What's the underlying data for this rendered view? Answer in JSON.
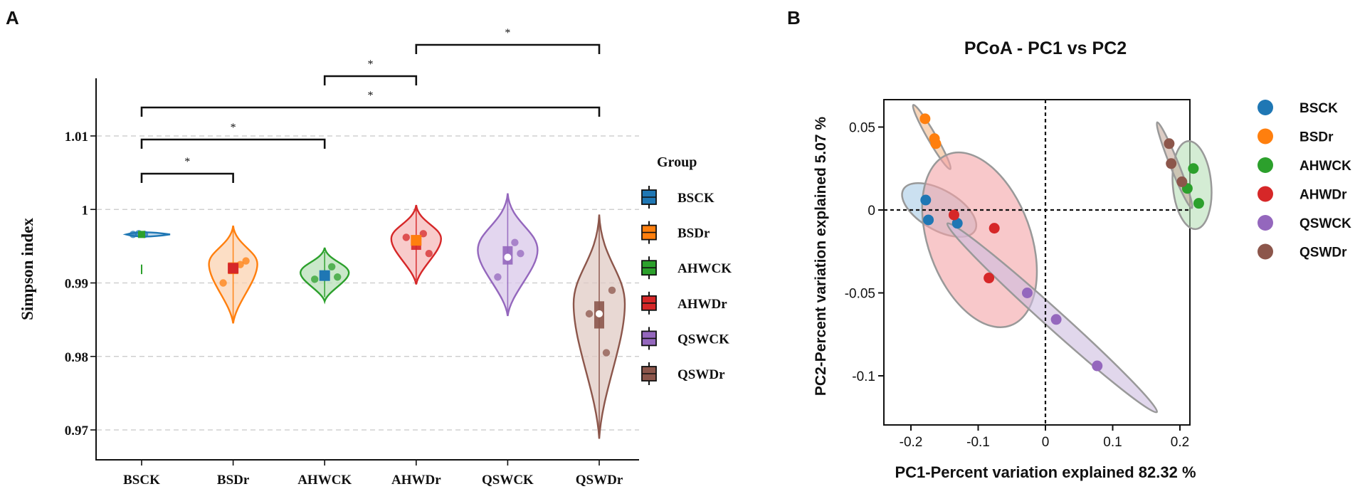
{
  "chart_data": [
    {
      "panel_label": "A",
      "type": "violin",
      "ylabel": "Simpson index",
      "ylim": [
        0.967,
        1.018
      ],
      "yticks": [
        "0.97",
        "0.98",
        "0.99",
        "1",
        "1.01"
      ],
      "ytick_values": [
        0.97,
        0.98,
        0.99,
        1.0,
        1.01
      ],
      "categories": [
        "BSCK",
        "BSDr",
        "AHWCK",
        "AHWDr",
        "QSWCK",
        "QSWDr"
      ],
      "legend_title": "Group",
      "colors": [
        "#1f77b4",
        "#ff7f0e",
        "#2ca02c",
        "#d62728",
        "#9467bd",
        "#8c564b"
      ],
      "fills": [
        "#a9cbe6",
        "#fbd3b2",
        "#b8e0b8",
        "#f5b9b9",
        "#d9c8ea",
        "#e0cbc4"
      ],
      "groups": [
        {
          "name": "BSCK",
          "points": [
            0.9966,
            0.9967,
            0.9966
          ],
          "median": 0.9966,
          "mean": 0.9966,
          "violin_min": 0.9962,
          "violin_max": 0.997,
          "q1": 0.9965,
          "q3": 0.9967
        },
        {
          "name": "BSDr",
          "points": [
            0.99,
            0.9925,
            0.993
          ],
          "median": 0.992,
          "mean": 0.992,
          "violin_min": 0.9845,
          "violin_max": 0.9978,
          "q1": 0.9912,
          "q3": 0.9928
        },
        {
          "name": "AHWCK",
          "points": [
            0.9905,
            0.9922,
            0.9908
          ],
          "median": 0.991,
          "mean": 0.991,
          "violin_min": 0.9875,
          "violin_max": 0.9948,
          "q1": 0.9906,
          "q3": 0.9915
        },
        {
          "name": "AHWDr",
          "points": [
            0.9962,
            0.9967,
            0.994
          ],
          "median": 0.9955,
          "mean": 0.9958,
          "violin_min": 0.9898,
          "violin_max": 1.0006,
          "q1": 0.9945,
          "q3": 0.9965
        },
        {
          "name": "QSWCK",
          "points": [
            0.9908,
            0.9955,
            0.994
          ],
          "median": 0.9936,
          "mean": 0.9935,
          "violin_min": 0.9855,
          "violin_max": 1.0022,
          "q1": 0.9925,
          "q3": 0.995
        },
        {
          "name": "QSWDr",
          "points": [
            0.9858,
            0.9805,
            0.989
          ],
          "median": 0.9858,
          "mean": 0.9858,
          "violin_min": 0.9688,
          "violin_max": 0.9993,
          "q1": 0.9838,
          "q3": 0.9875
        }
      ],
      "significance": [
        {
          "from": "BSCK",
          "to": "BSDr",
          "label": "*"
        },
        {
          "from": "BSCK",
          "to": "AHWCK",
          "label": "*"
        },
        {
          "from": "BSCK",
          "to": "QSWDr",
          "label": "*"
        },
        {
          "from": "AHWCK",
          "to": "AHWDr",
          "label": "*"
        },
        {
          "from": "AHWDr",
          "to": "QSWDr",
          "label": "*"
        }
      ],
      "grid": "horizontal-dashed"
    },
    {
      "panel_label": "B",
      "type": "scatter",
      "title": "PCoA - PC1 vs PC2",
      "xlabel": "PC1-Percent variation explained 82.32 %",
      "ylabel": "PC2-Percent variation explained 5.07 %",
      "xlim": [
        -0.245,
        0.215
      ],
      "ylim": [
        -0.128,
        0.067
      ],
      "xticks": [
        "-0.2",
        "-0.1",
        "0",
        "0.1",
        "0.2"
      ],
      "xtick_values": [
        -0.2,
        -0.1,
        0,
        0.1,
        0.2
      ],
      "yticks": [
        "-0.1",
        "-0.05",
        "0",
        "0.05"
      ],
      "ytick_values": [
        -0.1,
        -0.05,
        0,
        0.05
      ],
      "legend_position": "right",
      "series": [
        {
          "name": "BSCK",
          "color": "#1f77b4",
          "x": [
            -0.178,
            -0.174,
            -0.131
          ],
          "y": [
            0.006,
            -0.006,
            -0.008
          ]
        },
        {
          "name": "BSDr",
          "color": "#ff7f0e",
          "x": [
            -0.179,
            -0.165,
            -0.163
          ],
          "y": [
            0.055,
            0.043,
            0.04
          ]
        },
        {
          "name": "AHWCK",
          "color": "#2ca02c",
          "x": [
            0.22,
            0.211,
            0.228
          ],
          "y": [
            0.025,
            0.013,
            0.004
          ]
        },
        {
          "name": "AHWDr",
          "color": "#d62728",
          "x": [
            -0.136,
            -0.076,
            -0.084
          ],
          "y": [
            -0.003,
            -0.011,
            -0.041
          ]
        },
        {
          "name": "QSWCK",
          "color": "#9467bd",
          "x": [
            -0.027,
            0.016,
            0.077
          ],
          "y": [
            -0.05,
            -0.066,
            -0.094
          ]
        },
        {
          "name": "QSWDr",
          "color": "#8c564b",
          "x": [
            0.184,
            0.187,
            0.203
          ],
          "y": [
            0.04,
            0.028,
            0.017
          ]
        }
      ],
      "ellipses": [
        {
          "group": "BSCK",
          "cx": -0.158,
          "cy": 0.0,
          "fill": "#a9cbe6"
        },
        {
          "group": "BSDr",
          "cx": -0.169,
          "cy": 0.044,
          "fill": "#f4b98a"
        },
        {
          "group": "AHWCK",
          "cx": 0.218,
          "cy": 0.015,
          "fill": "#b8e0b8"
        },
        {
          "group": "AHWDr",
          "cx": -0.098,
          "cy": -0.018,
          "fill": "#f4a3a6"
        },
        {
          "group": "QSWCK",
          "cx": 0.01,
          "cy": -0.065,
          "fill": "#cdbde0"
        },
        {
          "group": "QSWDr",
          "cx": 0.192,
          "cy": 0.027,
          "fill": "#c6ab9f"
        }
      ]
    }
  ]
}
